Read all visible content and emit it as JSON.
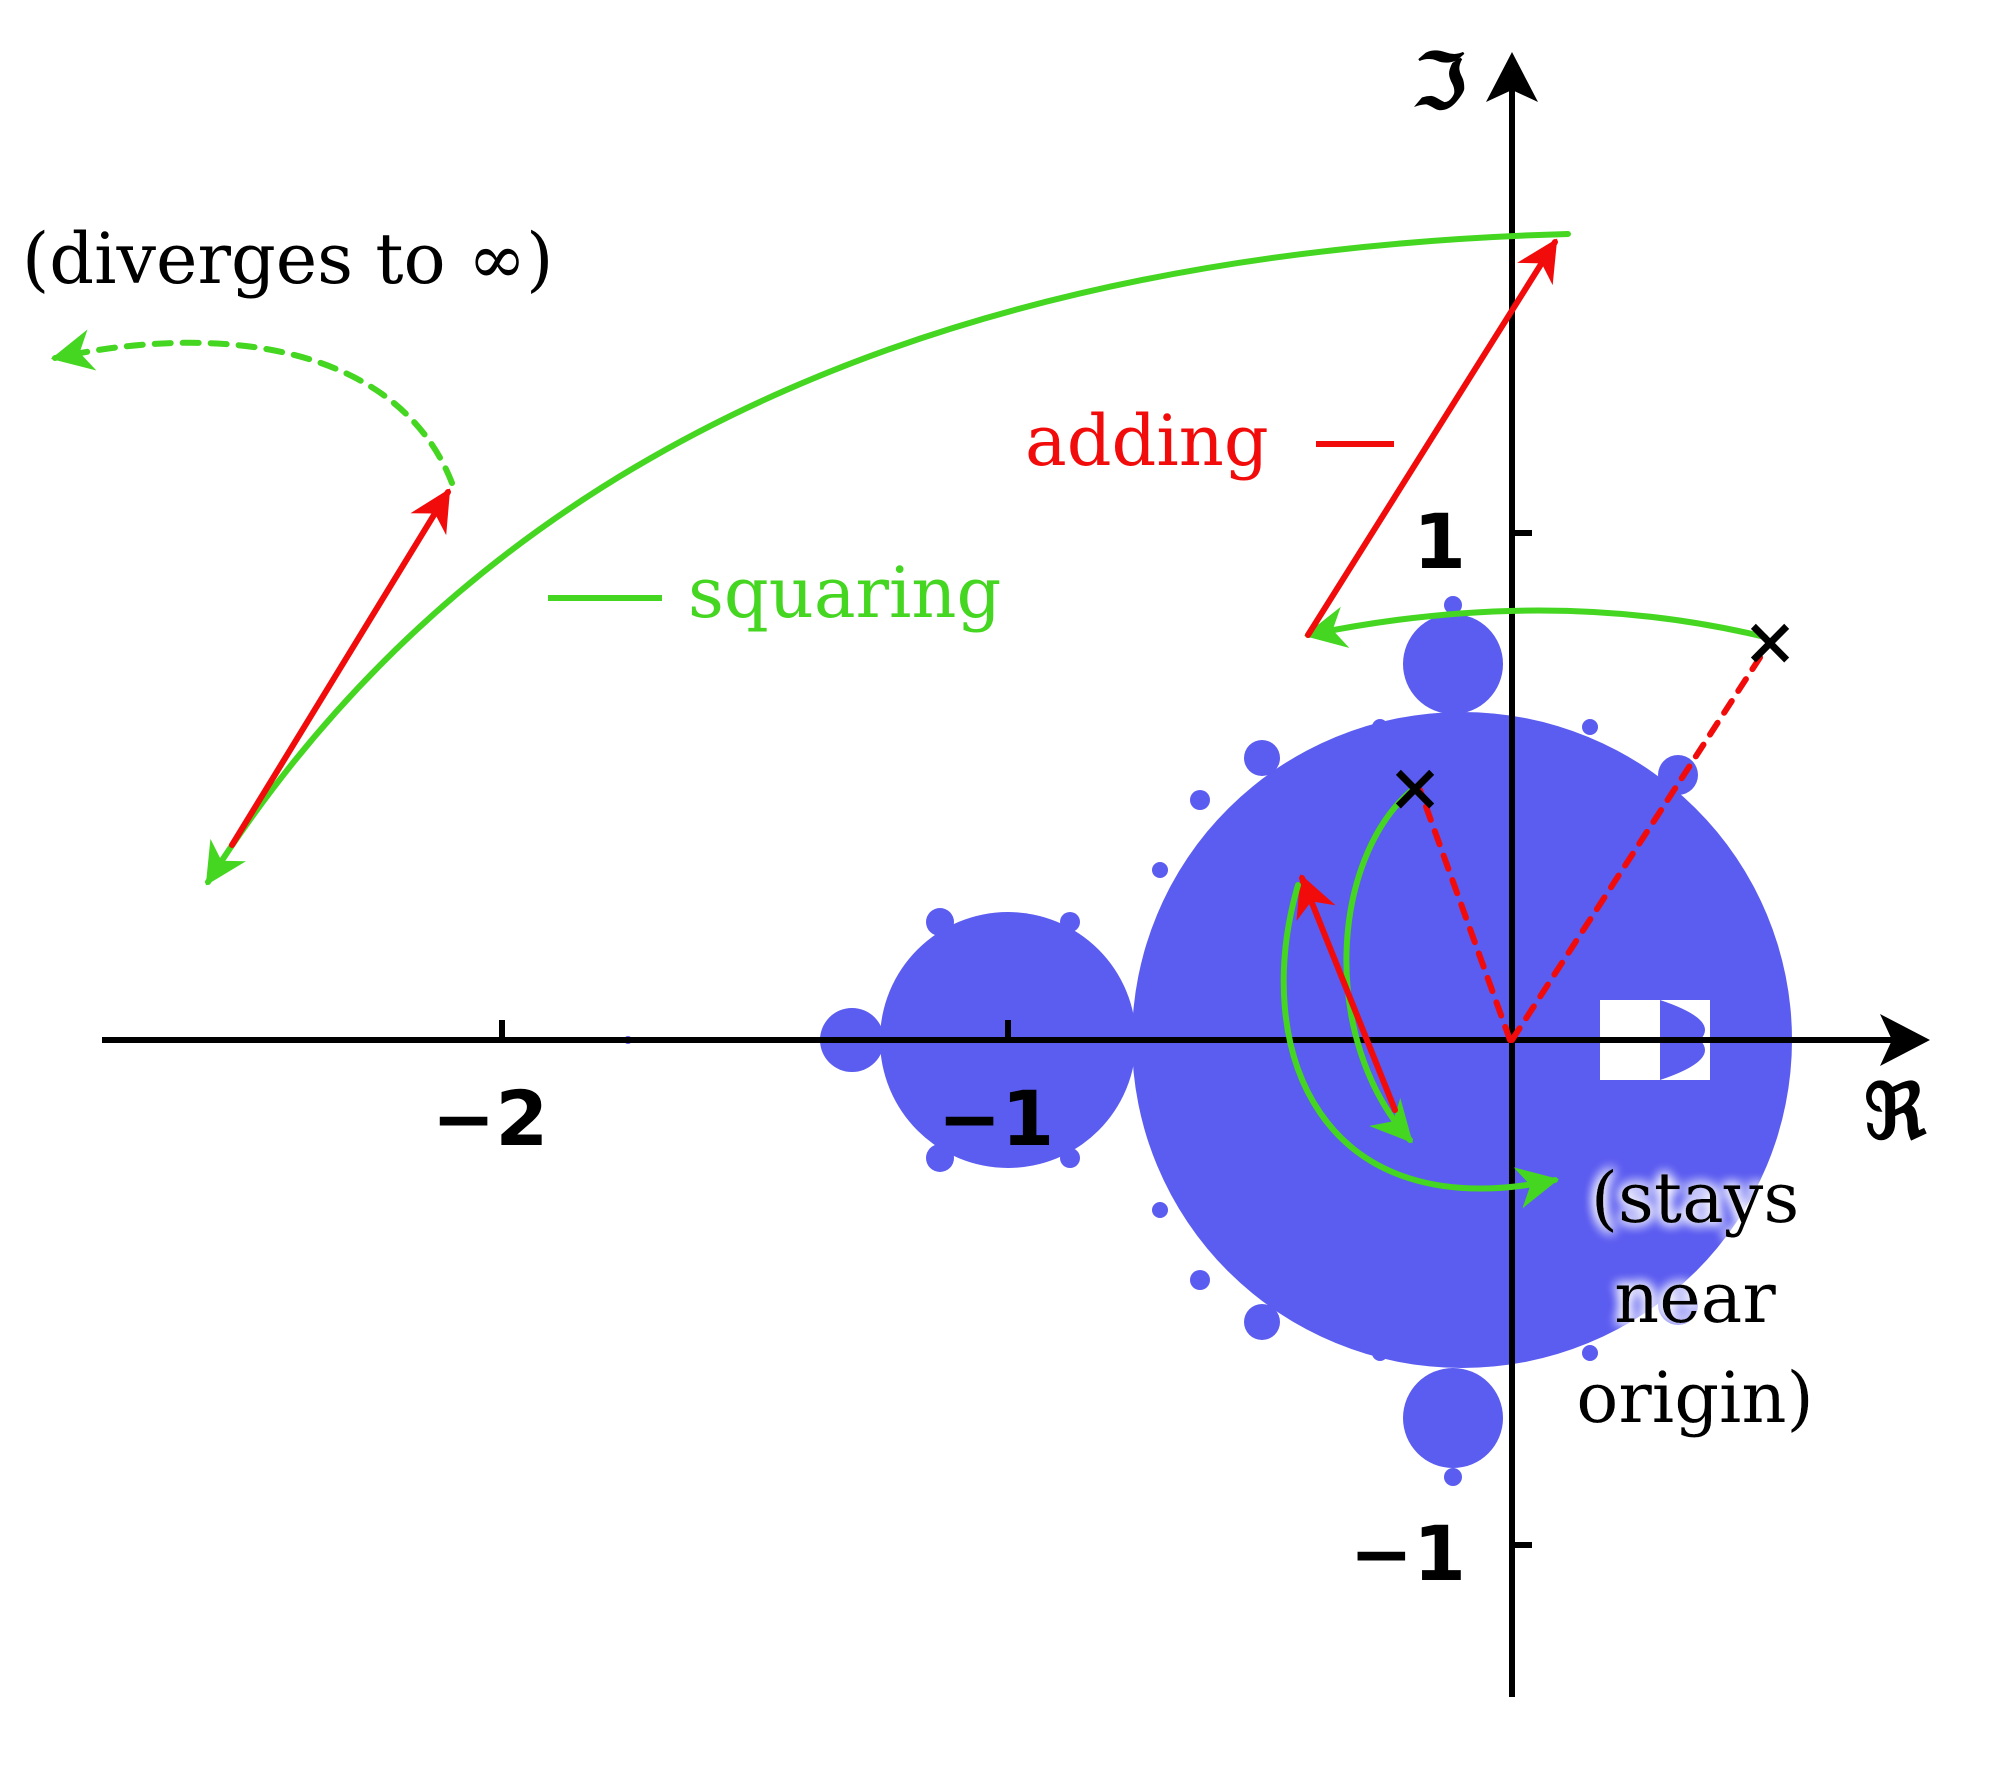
{
  "axes": {
    "real_symbol": "ℜ",
    "imag_symbol": "ℑ",
    "x_ticks": [
      "−2",
      "−1"
    ],
    "y_ticks": [
      "1",
      "−1"
    ]
  },
  "labels": {
    "diverges": "(diverges to ∞)",
    "squaring": "squaring",
    "adding": "adding",
    "stays_line1": "(stays",
    "stays_line2": "near",
    "stays_line3": "origin)"
  },
  "colors": {
    "mandelbrot_fill": "#5b5cf0",
    "squaring": "#44d620",
    "adding": "#f20b0b",
    "axes": "#000000"
  }
}
